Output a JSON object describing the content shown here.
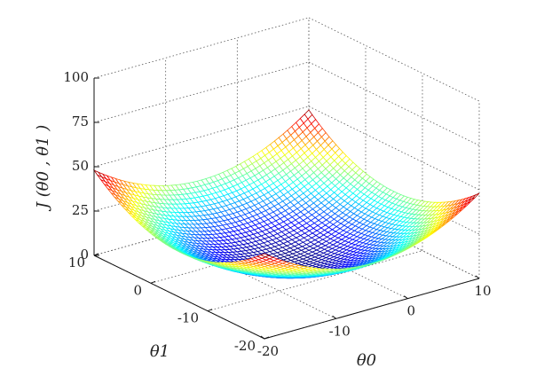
{
  "chart_data": {
    "type": "surface",
    "title": "",
    "xlabel": "θ0",
    "ylabel": "θ1",
    "zlabel": "J (θ0 , θ1 )",
    "xlim": [
      -20,
      10
    ],
    "ylim": [
      -20,
      10
    ],
    "zlim": [
      0,
      100
    ],
    "x_ticks": [
      "-20",
      "-10",
      "0",
      "10"
    ],
    "y_ticks": [
      "-20",
      "-10",
      "0",
      "10"
    ],
    "z_ticks": [
      "0",
      "25",
      "50",
      "75",
      "100"
    ],
    "grid": true,
    "colormap": "jet",
    "function": "J = 0.1·(θ0+5)^2 + 0.1·(θ1+5)^2 + 3",
    "mesh_resolution": 50,
    "color_range": [
      3,
      48
    ]
  }
}
